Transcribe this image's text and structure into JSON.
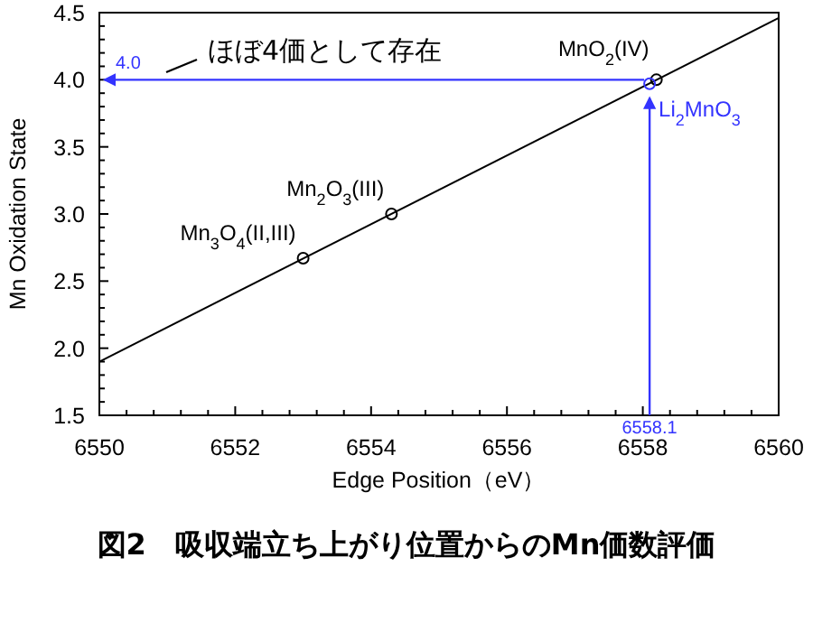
{
  "chart_data": {
    "type": "scatter",
    "title": "図2　吸収端立ち上がり位置からのMn価数評価",
    "xlabel": "Edge Position（eV）",
    "ylabel": "Mn Oxidation State",
    "xlim": [
      6550,
      6560
    ],
    "ylim": [
      1.5,
      4.5
    ],
    "xticks": [
      6550,
      {
        "value": 6550.4,
        "label": null
      },
      {
        "value": 6550.8,
        "label": null
      },
      {
        "value": 6551.2,
        "label": null
      },
      {
        "value": 6551.6,
        "label": null
      },
      6552,
      {
        "value": 6552.4,
        "label": null
      },
      {
        "value": 6552.8,
        "label": null
      },
      {
        "value": 6553.2,
        "label": null
      },
      {
        "value": 6553.6,
        "label": null
      },
      6554,
      {
        "value": 6554.4,
        "label": null
      },
      {
        "value": 6554.8,
        "label": null
      },
      {
        "value": 6555.2,
        "label": null
      },
      {
        "value": 6555.6,
        "label": null
      },
      6556,
      {
        "value": 6556.4,
        "label": null
      },
      {
        "value": 6556.8,
        "label": null
      },
      {
        "value": 6557.2,
        "label": null
      },
      {
        "value": 6557.6,
        "label": null
      },
      6558,
      {
        "value": 6558.4,
        "label": null
      },
      {
        "value": 6558.8,
        "label": null
      },
      {
        "value": 6559.2,
        "label": null
      },
      {
        "value": 6559.6,
        "label": null
      },
      6560
    ],
    "yticks": [
      {
        "value": 1.5,
        "label": "1.5"
      },
      {
        "value": 1.6,
        "label": null
      },
      {
        "value": 1.7,
        "label": null
      },
      {
        "value": 1.8,
        "label": null
      },
      {
        "value": 1.9,
        "label": null
      },
      {
        "value": 2,
        "label": "2.0"
      },
      {
        "value": 2.1,
        "label": null
      },
      {
        "value": 2.2,
        "label": null
      },
      {
        "value": 2.3,
        "label": null
      },
      {
        "value": 2.4,
        "label": null
      },
      {
        "value": 2.5,
        "label": "2.5"
      },
      {
        "value": 2.6,
        "label": null
      },
      {
        "value": 2.7,
        "label": null
      },
      {
        "value": 2.8,
        "label": null
      },
      {
        "value": 2.9,
        "label": null
      },
      {
        "value": 3,
        "label": "3.0"
      },
      {
        "value": 3.1,
        "label": null
      },
      {
        "value": 3.2,
        "label": null
      },
      {
        "value": 3.3,
        "label": null
      },
      {
        "value": 3.4,
        "label": null
      },
      {
        "value": 3.5,
        "label": "3.5"
      },
      {
        "value": 3.6,
        "label": null
      },
      {
        "value": 3.7,
        "label": null
      },
      {
        "value": 3.8,
        "label": null
      },
      {
        "value": 3.9,
        "label": null
      },
      {
        "value": 4,
        "label": "4.0"
      },
      {
        "value": 4.1,
        "label": null
      },
      {
        "value": 4.2,
        "label": null
      },
      {
        "value": 4.3,
        "label": null
      },
      {
        "value": 4.4,
        "label": null
      },
      {
        "value": 4.5,
        "label": "4.5"
      }
    ],
    "grid": false,
    "series": [
      {
        "type": "line",
        "color": "#000000",
        "x": [
          6550,
          6560
        ],
        "values": [
          1.9,
          4.46
        ],
        "marker": "none"
      },
      {
        "color": "#000000",
        "x": [
          6553.0,
          6554.3,
          6558.2
        ],
        "values": [
          2.67,
          3.0,
          4.0
        ],
        "marker": "circle"
      },
      {
        "color": "#3333ff",
        "x": [
          6558.1
        ],
        "values": [
          3.97
        ],
        "marker": "circle"
      }
    ],
    "ref_lines": [
      {
        "axis": "x",
        "value": 6558.1,
        "label": "6558.1",
        "color": "#3333ff"
      },
      {
        "axis": "y",
        "value": 4.0,
        "label": "4.0",
        "color": "#3333ff"
      }
    ],
    "annotations": [
      {
        "text": "Mn$_{3}$O$_{4}$(II,III)",
        "x": 6553.0,
        "y": 2.67
      },
      {
        "text": "Mn$_{2}$O$_{3}$(III)",
        "x": 6554.3,
        "y": 3.0
      },
      {
        "text": "MnO$_{2}$(IV)",
        "x": 6558.2,
        "y": 4.0
      },
      {
        "text": "Li$_{2}$MnO$_{3}$",
        "x": 6558.1,
        "y": 3.97
      },
      "ほぼ4価として存在"
    ]
  }
}
